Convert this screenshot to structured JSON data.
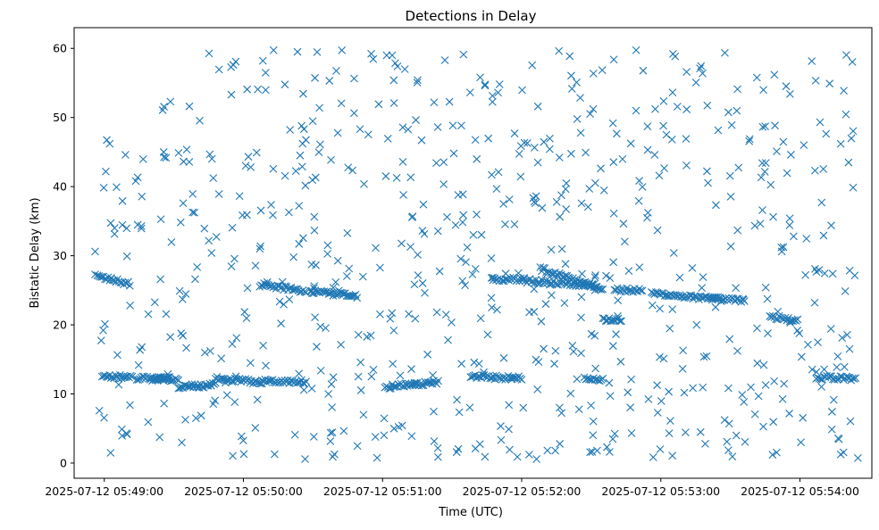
{
  "chart_data": {
    "type": "scatter",
    "title": "Detections in Delay",
    "xlabel": "Time (UTC)",
    "ylabel": "Bistatic Delay (km)",
    "marker": "x",
    "marker_color": "#1f77b4",
    "x_start": "2025-07-12 05:48:56",
    "x_end": "2025-07-12 05:54:25",
    "xlim": [
      "2025-07-12 05:48:47",
      "2025-07-12 05:54:31"
    ],
    "ylim": [
      -2.2,
      63.0
    ],
    "x_ticks": [
      "2025-07-12 05:49:00",
      "2025-07-12 05:50:00",
      "2025-07-12 05:51:00",
      "2025-07-12 05:52:00",
      "2025-07-12 05:53:00",
      "2025-07-12 05:54:00"
    ],
    "y_ticks": [
      0,
      10,
      20,
      30,
      40,
      50,
      60
    ],
    "grid": false,
    "legend": "none",
    "tracks": [
      {
        "t_start": "2025-07-12 05:48:57",
        "t_end": "2025-07-12 05:49:11",
        "y_start": 27.0,
        "y_end": 25.9
      },
      {
        "t_start": "2025-07-12 05:48:59",
        "t_end": "2025-07-12 05:49:12",
        "y_start": 12.5,
        "y_end": 12.4
      },
      {
        "t_start": "2025-07-12 05:49:14",
        "t_end": "2025-07-12 05:49:32",
        "y_start": 12.3,
        "y_end": 12.1
      },
      {
        "t_start": "2025-07-12 05:49:32",
        "t_end": "2025-07-12 05:49:48",
        "y_start": 11.0,
        "y_end": 11.3
      },
      {
        "t_start": "2025-07-12 05:49:48",
        "t_end": "2025-07-12 05:50:08",
        "y_start": 12.2,
        "y_end": 11.7
      },
      {
        "t_start": "2025-07-12 05:50:07",
        "t_end": "2025-07-12 05:50:27",
        "y_start": 25.8,
        "y_end": 24.9
      },
      {
        "t_start": "2025-07-12 05:50:08",
        "t_end": "2025-07-12 05:50:27",
        "y_start": 11.9,
        "y_end": 11.7
      },
      {
        "t_start": "2025-07-12 05:50:29",
        "t_end": "2025-07-12 05:50:49",
        "y_start": 24.8,
        "y_end": 24.1
      },
      {
        "t_start": "2025-07-12 05:51:01",
        "t_end": "2025-07-12 05:51:24",
        "y_start": 11.0,
        "y_end": 11.7
      },
      {
        "t_start": "2025-07-12 05:51:38",
        "t_end": "2025-07-12 05:52:00",
        "y_start": 12.5,
        "y_end": 12.3
      },
      {
        "t_start": "2025-07-12 05:51:47",
        "t_end": "2025-07-12 05:52:01",
        "y_start": 26.6,
        "y_end": 26.6
      },
      {
        "t_start": "2025-07-12 05:52:08",
        "t_end": "2025-07-12 05:52:35",
        "y_start": 28.1,
        "y_end": 25.3
      },
      {
        "t_start": "2025-07-12 05:52:01",
        "t_end": "2025-07-12 05:52:31",
        "y_start": 26.4,
        "y_end": 25.7
      },
      {
        "t_start": "2025-07-12 05:52:27",
        "t_end": "2025-07-12 05:52:35",
        "y_start": 12.3,
        "y_end": 12.1
      },
      {
        "t_start": "2025-07-12 05:52:35",
        "t_end": "2025-07-12 05:52:43",
        "y_start": 20.8,
        "y_end": 20.7
      },
      {
        "t_start": "2025-07-12 05:52:40",
        "t_end": "2025-07-12 05:52:52",
        "y_start": 25.1,
        "y_end": 24.9
      },
      {
        "t_start": "2025-07-12 05:52:56",
        "t_end": "2025-07-12 05:53:26",
        "y_start": 24.6,
        "y_end": 23.6
      },
      {
        "t_start": "2025-07-12 05:53:22",
        "t_end": "2025-07-12 05:53:36",
        "y_start": 23.8,
        "y_end": 23.5
      },
      {
        "t_start": "2025-07-12 05:53:47",
        "t_end": "2025-07-12 05:53:59",
        "y_start": 21.2,
        "y_end": 20.6
      },
      {
        "t_start": "2025-07-12 05:54:07",
        "t_end": "2025-07-12 05:54:24",
        "y_start": 12.4,
        "y_end": 12.2
      },
      {
        "t_start": "2025-07-12 05:49:20",
        "t_end": "2025-07-12 05:49:28",
        "y_start": 12.2,
        "y_end": 12.2
      }
    ],
    "scattered_points": {
      "count": 700,
      "y_range": [
        0.5,
        59.8
      ],
      "seed": 12345
    }
  }
}
